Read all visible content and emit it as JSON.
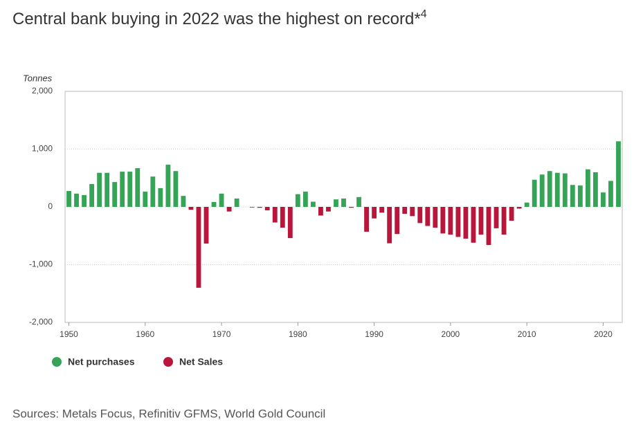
{
  "chart_data": {
    "type": "bar",
    "title": "Central bank buying in 2022 was the highest on record*",
    "title_superscript": "4",
    "y_axis_label": "Tonnes",
    "source": "Sources: Metals Focus, Refinitiv GFMS, World Gold Council",
    "x": [
      1950,
      1951,
      1952,
      1953,
      1954,
      1955,
      1956,
      1957,
      1958,
      1959,
      1960,
      1961,
      1962,
      1963,
      1964,
      1965,
      1966,
      1967,
      1968,
      1969,
      1970,
      1971,
      1972,
      1973,
      1974,
      1975,
      1976,
      1977,
      1978,
      1979,
      1980,
      1981,
      1982,
      1983,
      1984,
      1985,
      1986,
      1987,
      1988,
      1989,
      1990,
      1991,
      1992,
      1993,
      1994,
      1995,
      1996,
      1997,
      1998,
      1999,
      2000,
      2001,
      2002,
      2003,
      2004,
      2005,
      2006,
      2007,
      2008,
      2009,
      2010,
      2011,
      2012,
      2013,
      2014,
      2015,
      2016,
      2017,
      2018,
      2019,
      2020,
      2021,
      2022
    ],
    "series": [
      {
        "name": "Net purchases",
        "color": "#36a456",
        "values": [
          275,
          230,
          205,
          395,
          590,
          590,
          430,
          610,
          610,
          670,
          265,
          525,
          325,
          730,
          620,
          190,
          null,
          null,
          null,
          85,
          230,
          null,
          145,
          0,
          null,
          null,
          null,
          null,
          null,
          null,
          220,
          265,
          90,
          null,
          null,
          130,
          145,
          null,
          170,
          null,
          null,
          null,
          null,
          null,
          null,
          null,
          null,
          null,
          null,
          null,
          null,
          null,
          null,
          null,
          null,
          null,
          null,
          null,
          null,
          null,
          75,
          470,
          560,
          620,
          590,
          580,
          380,
          370,
          650,
          600,
          250,
          450,
          1135
        ]
      },
      {
        "name": "Net Sales",
        "color": "#b8173b",
        "values": [
          null,
          null,
          null,
          null,
          null,
          null,
          null,
          null,
          null,
          null,
          null,
          null,
          null,
          null,
          null,
          null,
          -50,
          -1400,
          -635,
          null,
          null,
          -80,
          null,
          null,
          -10,
          -15,
          -60,
          -270,
          -360,
          -540,
          null,
          null,
          null,
          -150,
          -80,
          null,
          null,
          -15,
          null,
          -430,
          -200,
          -100,
          -630,
          -470,
          -120,
          -160,
          -280,
          -330,
          -360,
          -460,
          -480,
          -520,
          -550,
          -620,
          -480,
          -660,
          -370,
          -480,
          -240,
          -30,
          null,
          null,
          null,
          null,
          null,
          null,
          null,
          null,
          null,
          null,
          null,
          null,
          null
        ]
      }
    ],
    "xlim": [
      1949.5,
      2022.5
    ],
    "xticks": [
      1950,
      1960,
      1970,
      1980,
      1990,
      2000,
      2010,
      2020
    ],
    "ylim": [
      -2000,
      2000
    ],
    "yticks": [
      {
        "value": -2000,
        "label": "-2,000"
      },
      {
        "value": -1000,
        "label": "-1,000"
      },
      0,
      {
        "value": 1000,
        "label": "1,000"
      },
      {
        "value": 2000,
        "label": "2,000"
      }
    ],
    "grid": true
  }
}
